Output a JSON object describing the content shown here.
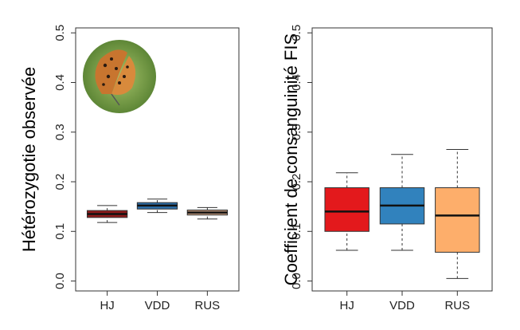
{
  "chart_data": [
    {
      "type": "box",
      "y_label": "Hétérozygotie observée",
      "categories": [
        "HJ",
        "VDD",
        "RUS"
      ],
      "low": [
        0.118,
        0.138,
        0.125
      ],
      "q1": [
        0.128,
        0.145,
        0.133
      ],
      "median": [
        0.135,
        0.152,
        0.138
      ],
      "q3": [
        0.142,
        0.158,
        0.143
      ],
      "high": [
        0.152,
        0.165,
        0.148
      ],
      "colors": [
        "#8e1b1b",
        "#2d6ea8",
        "#c39a7c"
      ],
      "ylim": [
        -0.02,
        0.51
      ],
      "yticks": [
        {
          "value": 0,
          "label": "0.0"
        },
        0.1,
        0.2,
        0.3,
        0.4,
        0.5
      ]
    },
    {
      "type": "box",
      "y_label": "Coefficient de consanguinité FIS",
      "categories": [
        "HJ",
        "VDD",
        "RUS"
      ],
      "low": [
        0.062,
        0.062,
        0.005
      ],
      "q1": [
        0.1,
        0.115,
        0.058
      ],
      "median": [
        0.14,
        0.152,
        0.132
      ],
      "q3": [
        0.188,
        0.188,
        0.188
      ],
      "high": [
        0.218,
        0.255,
        0.265
      ],
      "colors": [
        "#e3191c",
        "#3182bd",
        "#fdae6b"
      ],
      "ylim": [
        -0.02,
        0.51
      ],
      "yticks": [
        {
          "value": 0,
          "label": "0.0"
        },
        0.1,
        0.2,
        0.3,
        0.4,
        0.5
      ]
    }
  ]
}
